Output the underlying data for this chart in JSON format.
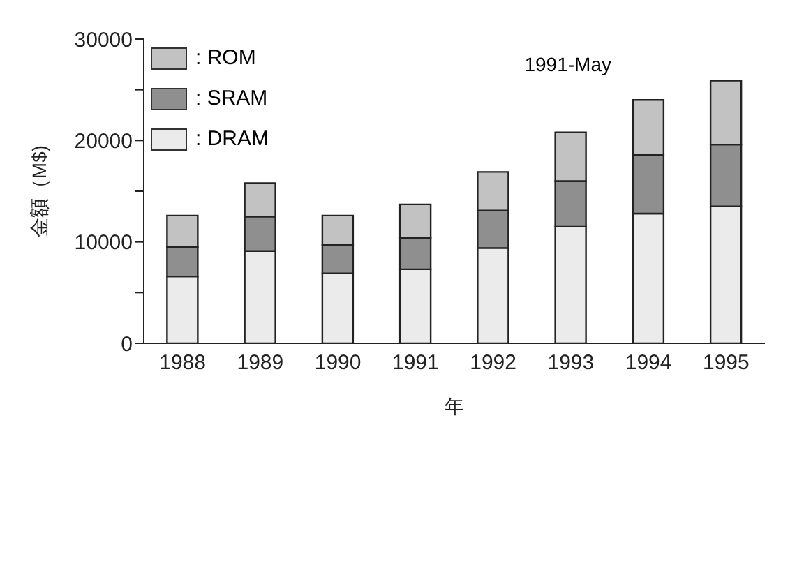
{
  "chart_data": {
    "type": "bar",
    "stacked": true,
    "xlabel": "年",
    "ylabel": "金額（M$)",
    "annotations": [
      "1991-May"
    ],
    "categories": [
      "1988",
      "1989",
      "1990",
      "1991",
      "1992",
      "1993",
      "1994",
      "1995"
    ],
    "series": [
      {
        "name": ": DRAM",
        "color": "#ebebeb",
        "values": [
          6600,
          9100,
          6900,
          7300,
          9400,
          11500,
          12800,
          13500
        ]
      },
      {
        "name": ": SRAM",
        "color": "#8f8f8f",
        "values": [
          2900,
          3400,
          2800,
          3100,
          3700,
          4500,
          5800,
          6100
        ]
      },
      {
        "name": ": ROM",
        "color": "#c2c2c2",
        "values": [
          3100,
          3300,
          2900,
          3300,
          3800,
          4800,
          5400,
          6300
        ]
      }
    ],
    "ylim": [
      0,
      30000
    ],
    "yticks": [
      0,
      {
        "value": 5000,
        "label": null
      },
      10000,
      {
        "value": 15000,
        "label": null
      },
      20000,
      {
        "value": 25000,
        "label": null
      },
      30000
    ],
    "grid": false,
    "legend": "top left"
  }
}
